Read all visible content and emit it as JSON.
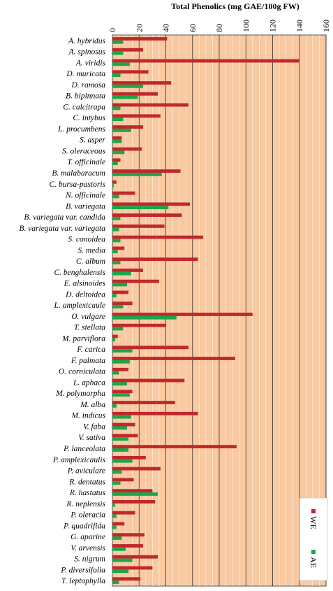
{
  "chart_data": {
    "type": "bar",
    "orientation": "horizontal",
    "title": "Total Phenolics (mg GAE/100g FW)",
    "xlim": [
      0,
      160
    ],
    "x_ticks": [
      0,
      20,
      40,
      60,
      80,
      100,
      120,
      140,
      160
    ],
    "grid": true,
    "legend_position": "bottom-right",
    "categories": [
      "A. hybridus",
      "A. spinosus",
      "A. viridis",
      "D. muricata",
      "D. ramosa",
      "B. bipinnata",
      "C. calcitrapa",
      "C. intybus",
      "L. procumbens",
      "S. asper",
      "S. oleraceous",
      "T. officinale",
      "B. malabaracum",
      "C. bursa-pastoris",
      "N. officinale",
      "B. variegata",
      "B. variegata var. candida",
      "B. variegata var. variegata",
      "S. conoidea",
      "S. media",
      "C. album",
      "C. benghalensis",
      "E. alsinoides",
      "D. deltoidea",
      "L. amplexicaule",
      "O. vulgare",
      "T. stellata",
      "M. parviflora",
      "F. carica",
      "F. palmata",
      "O. corniculata",
      "L. aphaca",
      "M. polymorpha",
      "M. alba",
      "M. indicus",
      "V. faba",
      "V. sativa",
      "P. lanceolata",
      "P. amplexicaulis",
      "P. aviculare",
      "R. dentatus",
      "R. hastatus",
      "R. neplensis",
      "P. oleracia",
      "P. quadrifida",
      "G. aparine",
      "V. arvensis",
      "S. nigrum",
      "P. diversifolia",
      "T. leptophylla"
    ],
    "series": [
      {
        "name": "WE",
        "color": "#c0282d",
        "values": [
          41,
          23,
          140,
          27,
          44,
          34,
          57,
          36,
          23,
          7,
          22,
          6,
          51,
          3,
          17,
          58,
          52,
          39,
          68,
          9,
          64,
          23,
          35,
          12,
          15,
          105,
          40,
          4,
          57,
          92,
          12,
          54,
          15,
          47,
          64,
          17,
          19,
          93,
          25,
          36,
          16,
          30,
          32,
          17,
          9,
          24,
          23,
          34,
          30,
          21
        ]
      },
      {
        "name": "AE",
        "color": "#1aa64a",
        "values": [
          8,
          8,
          13,
          6,
          23,
          19,
          6,
          8,
          14,
          7,
          9,
          4,
          37,
          1,
          5,
          42,
          6,
          5,
          6,
          4,
          6,
          14,
          11,
          3,
          8,
          48,
          8,
          2,
          15,
          13,
          5,
          11,
          13,
          3,
          14,
          11,
          12,
          12,
          15,
          7,
          6,
          34,
          2,
          3,
          3,
          7,
          10,
          15,
          12,
          5
        ]
      }
    ]
  },
  "colors": {
    "plot_background": "#f9c9a1",
    "gridline": "#333333",
    "axis": "#555555"
  }
}
